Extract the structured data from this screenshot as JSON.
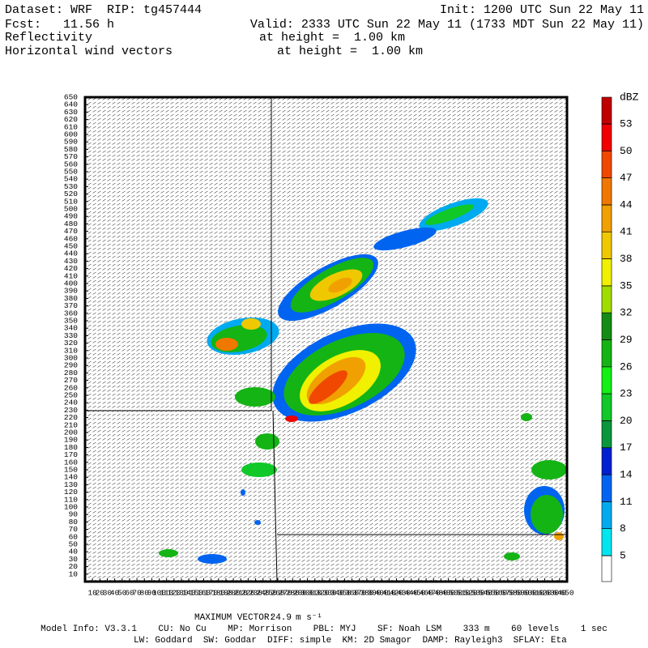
{
  "header": {
    "dataset": "Dataset: WRF  RIP: tg457444",
    "init": "Init: 1200 UTC Sun 22 May 11",
    "fcst": "Fcst:   11.56 h",
    "valid": "Valid: 2333 UTC Sun 22 May 11 (1733 MDT Sun 22 May 11)",
    "field1": "Reflectivity",
    "field1_height": "at height =  1.00 km",
    "field2": "Horizontal wind vectors",
    "field2_height": "at height =  1.00 km"
  },
  "chart_data": {
    "type": "map",
    "xlim": [
      0,
      650
    ],
    "ylim": [
      0,
      650
    ],
    "xticks": [
      10,
      20,
      30,
      40,
      50,
      60,
      70,
      80,
      90,
      100,
      110,
      120,
      130,
      140,
      150,
      160,
      170,
      180,
      190,
      200,
      210,
      220,
      230,
      240,
      250,
      260,
      270,
      280,
      290,
      300,
      310,
      320,
      330,
      340,
      350,
      360,
      370,
      380,
      390,
      400,
      410,
      420,
      430,
      440,
      450,
      460,
      470,
      480,
      490,
      500,
      510,
      520,
      530,
      540,
      550,
      560,
      570,
      580,
      590,
      600,
      610,
      620,
      630,
      640,
      650
    ],
    "yticks": [
      10,
      20,
      30,
      40,
      50,
      60,
      70,
      80,
      90,
      100,
      110,
      120,
      130,
      140,
      150,
      160,
      170,
      180,
      190,
      200,
      210,
      220,
      230,
      240,
      250,
      260,
      270,
      280,
      290,
      300,
      310,
      320,
      330,
      340,
      350,
      360,
      370,
      380,
      390,
      400,
      410,
      420,
      430,
      440,
      450,
      460,
      470,
      480,
      490,
      500,
      510,
      520,
      530,
      540,
      550,
      560,
      570,
      580,
      590,
      600,
      610,
      620,
      630,
      640,
      650
    ],
    "colorbar": {
      "label": "dBZ",
      "levels": [
        5,
        8,
        11,
        14,
        17,
        20,
        23,
        26,
        29,
        32,
        35,
        38,
        41,
        44,
        47,
        50,
        53
      ],
      "colors": [
        "#ffffff",
        "#00e6f0",
        "#00aaf0",
        "#0064f0",
        "#0020d0",
        "#0a963c",
        "#10c828",
        "#14f014",
        "#14b414",
        "#148c14",
        "#a0dc00",
        "#f0f000",
        "#f0c800",
        "#f0a000",
        "#f07800",
        "#f04800",
        "#f00000",
        "#c00000"
      ]
    }
  },
  "footer": {
    "max_vector_label": "MAXIMUM VECTOR:",
    "max_vector": 24.9,
    "max_vector_unit": "m s⁻¹",
    "model_info": "Model Info: V3.3.1    CU: No Cu    MP: Morrison    PBL: MYJ    SF: Noah LSM    333 m    60 levels    1 sec",
    "model_info2": "LW: Goddard  SW: Goddar  DIFF: simple  KM: 2D Smagor  DAMP: Rayleigh3  SFLAY: Eta"
  }
}
